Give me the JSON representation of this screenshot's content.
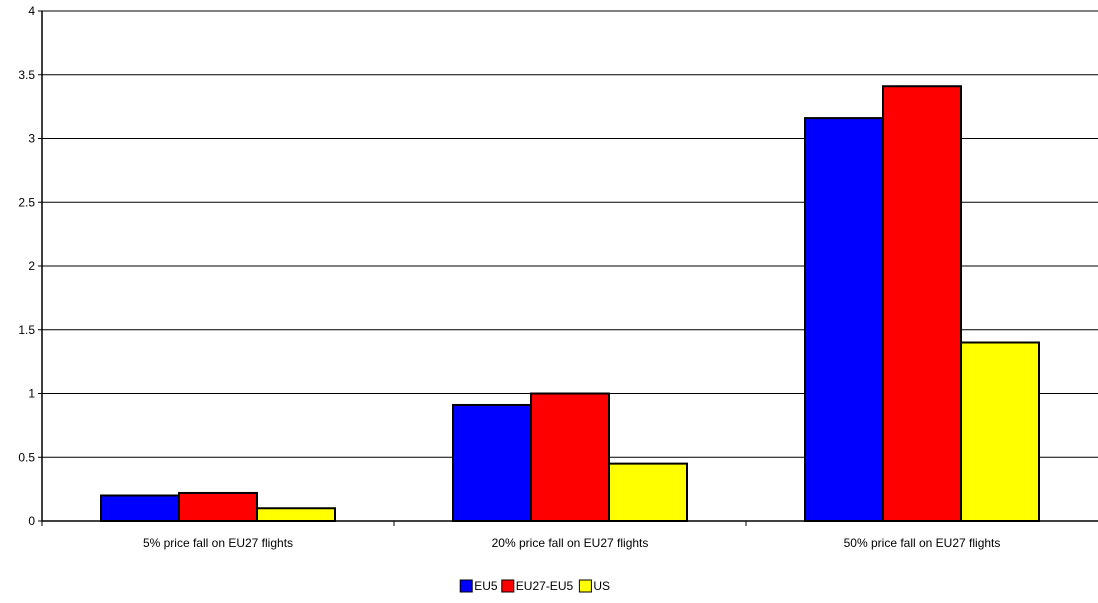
{
  "chart_data": {
    "type": "bar",
    "title": "",
    "xlabel": "",
    "ylabel": "",
    "categories": [
      "5% price fall on EU27 flights",
      "20% price fall on EU27 flights",
      "50% price fall on EU27 flights"
    ],
    "series": [
      {
        "name": "EU5",
        "color": "#0000ff",
        "values": [
          0.2,
          0.91,
          3.16
        ]
      },
      {
        "name": "EU27-EU5",
        "color": "#ff0000",
        "values": [
          0.22,
          1.0,
          3.41
        ]
      },
      {
        "name": "US",
        "color": "#ffff00",
        "values": [
          0.1,
          0.45,
          1.4
        ]
      }
    ],
    "ylim": [
      0,
      4
    ],
    "yticks": [
      0,
      0.5,
      1,
      1.5,
      2,
      2.5,
      3,
      3.5,
      4
    ],
    "ytick_labels": [
      "0",
      "0.5",
      "1",
      "1.5",
      "2",
      "2.5",
      "3",
      "3.5",
      "4"
    ],
    "grid": "horizontal",
    "legend": "bottom-center"
  }
}
